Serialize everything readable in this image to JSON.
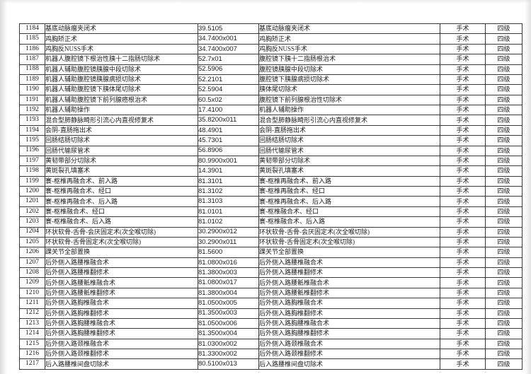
{
  "table": {
    "columns": {
      "no": "row-number",
      "name": "procedure-name",
      "code": "procedure-code",
      "name2": "procedure-name-alt",
      "category": "category",
      "level": "grade-level"
    },
    "category_value": "手术",
    "level_value": "四级",
    "rows": [
      {
        "no": "1184",
        "name": "基底动脉瘤夹闭术",
        "code": "39.5105",
        "name2": "基底动脉瘤夹闭术",
        "category": "手术",
        "level": "四级"
      },
      {
        "no": "1185",
        "name": "鸡胸矫正术",
        "code": "34.7400x001",
        "name2": "鸡胸矫正术",
        "category": "手术",
        "level": "四级"
      },
      {
        "no": "1186",
        "name": "鸡胸反NUSS手术",
        "code": "34.7400x007",
        "name2": "鸡胸反NUSS手术",
        "category": "手术",
        "level": "四级"
      },
      {
        "no": "1187",
        "name": "机器人腹腔镜下根治性胰十二指肠切除术",
        "code": "52.7x01",
        "name2": "腹腔镜下胰十二指肠根治术",
        "category": "手术",
        "level": "四级"
      },
      {
        "no": "1188",
        "name": "机器人辅助腹腔镜胰腺中段切除术",
        "code": "52.5906",
        "name2": "腹腔镜胰腺中段切除术",
        "category": "手术",
        "level": "四级"
      },
      {
        "no": "1189",
        "name": "机器人辅助腹腔镜胰腺病损切除术",
        "code": "52.2101",
        "name2": "腹腔镜下胰腺病损切除术",
        "category": "手术",
        "level": "四级"
      },
      {
        "no": "1190",
        "name": "机器人辅助腹腔镜下胰体尾切除术",
        "code": "52.5904",
        "name2": "胰体尾切除术",
        "category": "手术",
        "level": "四级"
      },
      {
        "no": "1191",
        "name": "机器人辅助腹腔镜下前列腺癌根治术",
        "code": "60.5x02",
        "name2": "腹腔镜下前列腺根治性切除术",
        "category": "手术",
        "level": "四级"
      },
      {
        "no": "1192",
        "name": "机器人辅助操作",
        "code": "17.4100",
        "name2": "机器人辅助操作",
        "category": "手术",
        "level": "四级"
      },
      {
        "no": "1193",
        "name": "混合型肺静脉畸形引流心内直视修复术",
        "code": "35.8200x011",
        "name2": "混合型肺静脉畸形引流心内直视修复术",
        "category": "手术",
        "level": "四级"
      },
      {
        "no": "1194",
        "name": "会阴-直肠拖出术",
        "code": "48.4901",
        "name2": "会阴-直肠拖出术",
        "category": "手术",
        "level": "四级"
      },
      {
        "no": "1195",
        "name": "回肠结肠切除术",
        "code": "45.7301",
        "name2": "回肠结肠切除术",
        "category": "手术",
        "level": "四级"
      },
      {
        "no": "1196",
        "name": "回肠代输尿管术",
        "code": "56.8906",
        "name2": "回肠代输尿管术",
        "category": "手术",
        "level": "四级"
      },
      {
        "no": "1197",
        "name": "黄韧带部分切除术",
        "code": "80.9900x001",
        "name2": "黄韧带部分切除术",
        "category": "手术",
        "level": "四级"
      },
      {
        "no": "1198",
        "name": "黄斑裂孔填塞术",
        "code": "14.3901",
        "name2": "黄斑裂孔填塞术",
        "category": "手术",
        "level": "四级"
      },
      {
        "no": "1199",
        "name": "寰-枢椎再融合术、前入路",
        "code": "81.3101",
        "name2": "寰-枢椎再融合术、前入路",
        "category": "手术",
        "level": "四级"
      },
      {
        "no": "1200",
        "name": "寰-枢椎再融合术、经口",
        "code": "81.3102",
        "name2": "寰-枢椎再融合术、经口",
        "category": "手术",
        "level": "四级"
      },
      {
        "no": "1201",
        "name": "寰-枢椎再融合术、后入路",
        "code": "81.3103",
        "name2": "寰-枢椎再融合术、后入路",
        "category": "手术",
        "level": "四级"
      },
      {
        "no": "1202",
        "name": "寰-枢椎融合术、经口",
        "code": "81.0101",
        "name2": "寰-枢椎融合术、经口",
        "category": "手术",
        "level": "四级"
      },
      {
        "no": "1203",
        "name": "寰-枢椎融合术、后入路",
        "code": "81.0102",
        "name2": "寰-枢椎融合术、后入路",
        "category": "手术",
        "level": "四级"
      },
      {
        "no": "1204",
        "name": "环状软骨-舌骨-会厌固定术(次全喉切除)",
        "code": "30.2900x012",
        "name2": "环状软骨-舌骨-会厌固定术(次全喉切除)",
        "category": "手术",
        "level": "四级"
      },
      {
        "no": "1205",
        "name": "环状软骨-舌骨固定术(次全喉切除)",
        "code": "30.2900x011",
        "name2": "环状软骨-舌骨固定术(次全喉切除)",
        "category": "手术",
        "level": "四级"
      },
      {
        "no": "1206",
        "name": "踝关节全部置换",
        "code": "81.5600",
        "name2": "踝关节全部置换",
        "category": "手术",
        "level": "四级"
      },
      {
        "no": "1207",
        "name": "后外侧入路腰椎融合术",
        "code": "81.0800x016",
        "name2": "后外侧入路腰椎融合术",
        "category": "手术",
        "level": "四级"
      },
      {
        "no": "1208",
        "name": "后外侧入路腰椎翻修术",
        "code": "81.3800x003",
        "name2": "后外侧入路腰椎翻修术",
        "category": "手术",
        "level": "四级"
      },
      {
        "no": "1209",
        "name": "后外侧入路腰骶椎融合术",
        "code": "81.0800x017",
        "name2": "后外侧入路腰骶椎融合术",
        "category": "手术",
        "level": "四级"
      },
      {
        "no": "1210",
        "name": "后外侧入路腰骶椎翻修术",
        "code": "81.3800x004",
        "name2": "后外侧入路腰骶椎翻修术",
        "category": "手术",
        "level": "四级"
      },
      {
        "no": "1211",
        "name": "后外侧入路胸椎融合术",
        "code": "81.0500x005",
        "name2": "后外侧入路胸椎融合术",
        "category": "手术",
        "level": "四级"
      },
      {
        "no": "1212",
        "name": "后外侧入路胸椎翻修术",
        "code": "81.3500x003",
        "name2": "后外侧入路胸椎翻修术",
        "category": "手术",
        "level": "四级"
      },
      {
        "no": "1213",
        "name": "后外侧入路胸腰椎融合术",
        "code": "81.0500x006",
        "name2": "后外侧入路胸腰椎融合术",
        "category": "手术",
        "level": "四级"
      },
      {
        "no": "1214",
        "name": "后外侧入路胸腰椎翻修术",
        "code": "81.3500x004",
        "name2": "后外侧入路胸腰椎翻修术",
        "category": "手术",
        "level": "四级"
      },
      {
        "no": "1215",
        "name": "后外侧入路颈椎融合术",
        "code": "81.0300x002",
        "name2": "后外侧入路颈椎融合术",
        "category": "手术",
        "level": "四级"
      },
      {
        "no": "1216",
        "name": "后外侧入路颈椎翻修术",
        "code": "81.3300x002",
        "name2": "后外侧入路颈椎翻修术",
        "category": "手术",
        "level": "四级"
      },
      {
        "no": "1217",
        "name": "后入路腰椎间盘切除术",
        "code": "80.5100x013",
        "name2": "后入路腰椎间盘切除术",
        "category": "手术",
        "level": "四级"
      }
    ]
  }
}
